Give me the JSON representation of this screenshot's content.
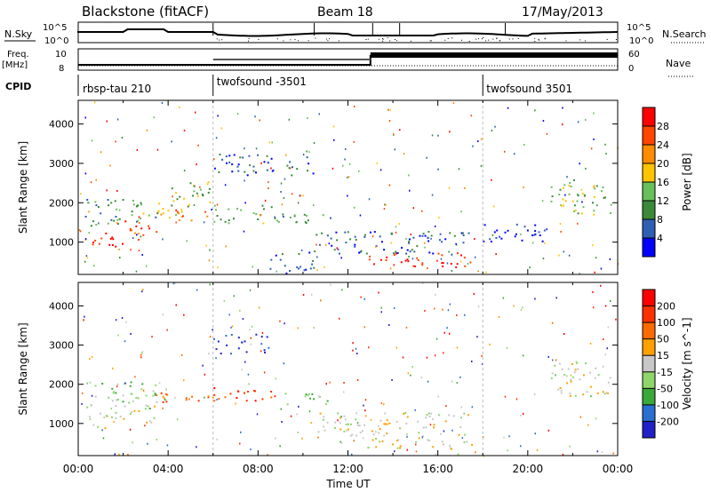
{
  "header": {
    "station": "Blackstone (fitACF)",
    "beam": "Beam 18",
    "date": "17/May/2013"
  },
  "side_labels": {
    "nsky": "N.Sky",
    "nsearch": "N.Search",
    "freq_line1": "Freq.",
    "freq_line2": "[MHz]",
    "nave": "Nave",
    "cpid": "CPID",
    "noise_tick_top": "10^5",
    "noise_tick_bottom": "10^0",
    "freq_tick_top": "10",
    "freq_tick_bottom": "8",
    "nave_tick_top": "60",
    "nave_tick_bottom": "0"
  },
  "cpid_segments": [
    {
      "name": "rbsp-tau 210",
      "start_hour": 0
    },
    {
      "name": "twofsound -3501",
      "start_hour": 6
    },
    {
      "name": "twofsound 3501",
      "start_hour": 18
    }
  ],
  "chart_data": [
    {
      "type": "heatmap",
      "parameter": "Power",
      "ylabel": "Slant Range [km]",
      "xlabel": "Time UT",
      "xlim_hours": [
        0,
        24
      ],
      "ylim": [
        180,
        4600
      ],
      "x_ticks": [
        "00:00",
        "04:00",
        "08:00",
        "12:00",
        "16:00",
        "20:00",
        "00:00"
      ],
      "y_ticks": [
        1000,
        2000,
        3000,
        4000
      ],
      "colorbar": {
        "label": "Power [dB]",
        "ticks": [
          "4",
          "8",
          "12",
          "16",
          "20",
          "24",
          "28"
        ],
        "colors": [
          "#0000ff",
          "#2e5fb4",
          "#3a8a3a",
          "#68c05a",
          "#ffc400",
          "#ff8c00",
          "#ff4500",
          "#ff0000"
        ]
      },
      "echo_regions": [
        {
          "t": [
            0.1,
            2.0
          ],
          "r": [
            900,
            1300
          ],
          "level": 7
        },
        {
          "t": [
            2.0,
            3.5
          ],
          "r": [
            1050,
            1600
          ],
          "level": 6
        },
        {
          "t": [
            3.5,
            6.0
          ],
          "r": [
            1550,
            1850
          ],
          "level": 5
        },
        {
          "t": [
            2.6,
            5.0
          ],
          "r": [
            1700,
            2000
          ],
          "level": 3
        },
        {
          "t": [
            4.0,
            6.0
          ],
          "r": [
            2000,
            2600
          ],
          "level": 3
        },
        {
          "t": [
            0.3,
            3.5
          ],
          "r": [
            1400,
            2100
          ],
          "level": 2
        },
        {
          "t": [
            6.0,
            9.0
          ],
          "r": [
            1500,
            1950
          ],
          "level": 3
        },
        {
          "t": [
            6.0,
            10.5
          ],
          "r": [
            2700,
            3250
          ],
          "level": 1
        },
        {
          "t": [
            9.0,
            11.5
          ],
          "r": [
            1500,
            1800
          ],
          "level": 2
        },
        {
          "t": [
            12.8,
            17.5
          ],
          "r": [
            350,
            750
          ],
          "level": 7
        },
        {
          "t": [
            10.5,
            17.5
          ],
          "r": [
            700,
            1300
          ],
          "level": 1
        },
        {
          "t": [
            8.5,
            10.5
          ],
          "r": [
            200,
            800
          ],
          "level": 1
        },
        {
          "t": [
            18.0,
            21.0
          ],
          "r": [
            1000,
            1500
          ],
          "level": 0
        },
        {
          "t": [
            21.0,
            23.8
          ],
          "r": [
            1700,
            2600
          ],
          "level": 3
        }
      ]
    },
    {
      "type": "heatmap",
      "parameter": "Velocity",
      "ylabel": "Slant Range [km]",
      "xlabel": "Time UT",
      "xlim_hours": [
        0,
        24
      ],
      "ylim": [
        180,
        4600
      ],
      "x_ticks": [
        "00:00",
        "04:00",
        "08:00",
        "12:00",
        "16:00",
        "20:00",
        "00:00"
      ],
      "y_ticks": [
        1000,
        2000,
        3000,
        4000
      ],
      "colorbar": {
        "label": "Velocity [m s^-1]",
        "ticks": [
          "200",
          "100",
          "50",
          "15",
          "-15",
          "-50",
          "-100",
          "-200"
        ],
        "colors": [
          "#2020c8",
          "#2a6fd0",
          "#3aa83a",
          "#8ed66b",
          "#c8c8c8",
          "#ffa000",
          "#ff6a00",
          "#ff3000",
          "#ff0000"
        ]
      },
      "echo_regions": [
        {
          "t": [
            0.1,
            2.0
          ],
          "r": [
            900,
            1300
          ],
          "level": 4
        },
        {
          "t": [
            2.0,
            3.5
          ],
          "r": [
            1000,
            1600
          ],
          "level": 4
        },
        {
          "t": [
            3.5,
            6.0
          ],
          "r": [
            1550,
            1850
          ],
          "level": 6
        },
        {
          "t": [
            6.0,
            9.0
          ],
          "r": [
            1600,
            1950
          ],
          "level": 7
        },
        {
          "t": [
            6.0,
            8.5
          ],
          "r": [
            2800,
            3300
          ],
          "level": 0
        },
        {
          "t": [
            9.0,
            11.5
          ],
          "r": [
            1500,
            1800
          ],
          "level": 3
        },
        {
          "t": [
            12.8,
            17.5
          ],
          "r": [
            350,
            750
          ],
          "level": 4
        },
        {
          "t": [
            10.5,
            17.5
          ],
          "r": [
            700,
            1300
          ],
          "level": 4
        },
        {
          "t": [
            21.0,
            23.8
          ],
          "r": [
            1700,
            2600
          ],
          "level": 4
        },
        {
          "t": [
            0.3,
            3.5
          ],
          "r": [
            1400,
            2100
          ],
          "level": 3
        }
      ]
    }
  ]
}
